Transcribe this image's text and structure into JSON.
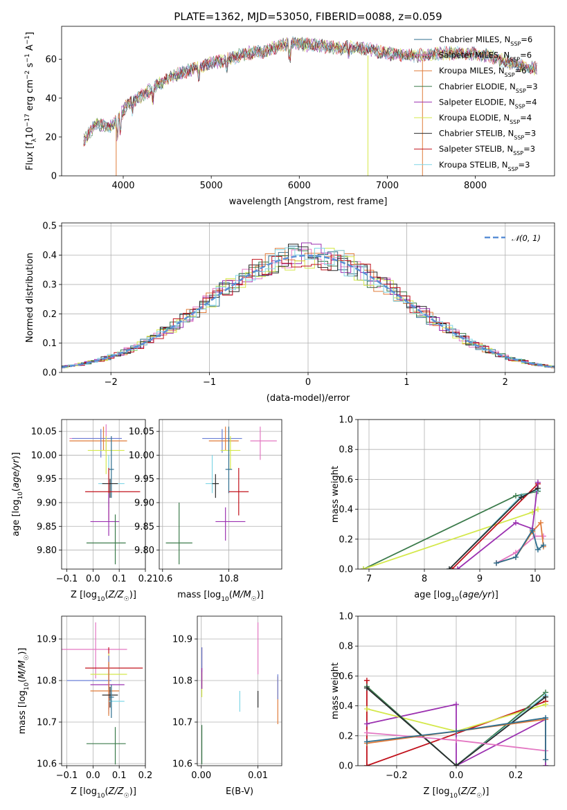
{
  "figure": {
    "title": "PLATE=1362, MJD=53050, FIBERID=0088, z=0.059"
  },
  "chart_data": [
    {
      "id": "spectrum",
      "type": "line",
      "xlabel": "wavelength [Angstrom, rest frame]",
      "ylabel": "Flux [f_λ 10^-17 erg cm^-2 s^-1 A^-1]",
      "xlim": [
        3300,
        8900
      ],
      "ylim": [
        0,
        77
      ],
      "xticks": [
        4000,
        5000,
        6000,
        7000,
        8000
      ],
      "yticks": [
        0,
        20,
        40,
        60
      ],
      "legend_position": "top-right",
      "series": [
        {
          "name": "Chabrier MILES, N_SSP=6",
          "color": "#2e6e8e"
        },
        {
          "name": "Salpeter MILES, N_SSP=6",
          "color": "#e377c2"
        },
        {
          "name": "Kroupa MILES, N_SSP=6",
          "color": "#e07b39"
        },
        {
          "name": "Chabrier ELODIE, N_SSP=3",
          "color": "#3a7a4a"
        },
        {
          "name": "Salpeter ELODIE, N_SSP=4",
          "color": "#9b30b0"
        },
        {
          "name": "Kroupa ELODIE, N_SSP=4",
          "color": "#d4e84a"
        },
        {
          "name": "Chabrier STELIB, N_SSP=3",
          "color": "#2a2a2a"
        },
        {
          "name": "Salpeter STELIB, N_SSP=3",
          "color": "#c0101a"
        },
        {
          "name": "Kroupa STELIB, N_SSP=3",
          "color": "#7fd6e6"
        }
      ],
      "continuum": {
        "x": [
          3550,
          3700,
          3850,
          3950,
          4050,
          4200,
          4400,
          4600,
          4800,
          5000,
          5200,
          5400,
          5600,
          5800,
          5900,
          6000,
          6200,
          6400,
          6600,
          6800,
          7000,
          7200,
          7400,
          7600,
          7800,
          8000,
          8200,
          8400,
          8700
        ],
        "y": [
          18,
          27,
          25,
          30,
          37,
          41,
          47,
          52,
          55,
          58,
          60,
          63,
          64,
          67,
          68,
          68,
          67,
          66,
          66,
          65,
          63,
          62,
          62,
          63,
          63,
          63,
          61,
          58,
          55
        ]
      }
    },
    {
      "id": "residuals",
      "type": "line",
      "xlabel": "(data-model)/error",
      "ylabel": "Normed distribution",
      "xlim": [
        -2.5,
        2.5
      ],
      "ylim": [
        0,
        0.51
      ],
      "xticks": [
        -2,
        -1,
        0,
        1,
        2
      ],
      "yticks": [
        0.0,
        0.1,
        0.2,
        0.3,
        0.4,
        0.5
      ],
      "legend_position": "top-right",
      "reference_curve": {
        "name": "𝒩(0, 1)",
        "mean": 0,
        "sigma": 1,
        "color": "#5b8fd6"
      },
      "histogram_bin_width": 0.1
    },
    {
      "id": "age-vs-Z",
      "type": "scatter",
      "xlabel": "Z [log10(Z/Z☉)]",
      "ylabel": "age [log10(age/yr)]",
      "xlim": [
        -0.12,
        0.2
      ],
      "ylim": [
        9.76,
        10.075
      ],
      "xticks": [
        -0.1,
        0.0,
        0.1,
        0.2
      ],
      "yticks": [
        9.8,
        9.85,
        9.9,
        9.95,
        10.0,
        10.05
      ],
      "points": [
        {
          "x": 0.05,
          "y": 10.035,
          "ex": [
            0.14,
            0.06
          ],
          "ey": [
            0.03,
            0.03
          ],
          "color": "#e377c2"
        },
        {
          "x": 0.04,
          "y": 10.03,
          "ex": [
            0.13,
            0.09
          ],
          "ey": [
            0.02,
            0.03
          ],
          "color": "#e07b39"
        },
        {
          "x": 0.03,
          "y": 10.035,
          "ex": [
            0.11,
            0.08
          ],
          "ey": [
            0.04,
            0.02
          ],
          "color": "#6a7fd6"
        },
        {
          "x": 0.05,
          "y": 10.01,
          "ex": [
            0.07,
            0.07
          ],
          "ey": [
            0.05,
            0.03
          ],
          "color": "#d4e84a"
        },
        {
          "x": 0.07,
          "y": 9.97,
          "ex": [
            0.01,
            0.01
          ],
          "ey": [
            0.06,
            0.07
          ],
          "color": "#2e6e8e"
        },
        {
          "x": 0.06,
          "y": 9.94,
          "ex": [
            0.04,
            0.06
          ],
          "ey": [
            0.05,
            0.06
          ],
          "color": "#7fd6e6"
        },
        {
          "x": 0.065,
          "y": 9.94,
          "ex": [
            0.03,
            0.03
          ],
          "ey": [
            0.03,
            0.01
          ],
          "color": "#2a2a2a"
        },
        {
          "x": 0.06,
          "y": 9.923,
          "ex": [
            0.09,
            0.12
          ],
          "ey": [
            0.06,
            0.05
          ],
          "color": "#c0101a"
        },
        {
          "x": 0.06,
          "y": 9.86,
          "ex": [
            0.07,
            0.04
          ],
          "ey": [
            0.03,
            0.06
          ],
          "color": "#9b30b0"
        },
        {
          "x": 0.085,
          "y": 9.815,
          "ex": [
            0.11,
            0.04
          ],
          "ey": [
            0.045,
            0.06
          ],
          "color": "#3a7a4a"
        }
      ]
    },
    {
      "id": "age-vs-mass",
      "type": "scatter",
      "xlabel": "mass [log10(M/M☉)]",
      "ylabel": "",
      "xlim": [
        10.59,
        10.96
      ],
      "ylim": [
        9.76,
        10.075
      ],
      "xticks": [
        10.6,
        10.8
      ],
      "yticks": [
        9.8,
        9.85,
        9.9,
        9.95,
        10.0,
        10.05
      ],
      "points": [
        {
          "x": 10.895,
          "y": 10.03,
          "ex": [
            0.03,
            0.05
          ],
          "ey": [
            0.04,
            0.03
          ],
          "color": "#e377c2"
        },
        {
          "x": 10.78,
          "y": 10.035,
          "ex": [
            0.06,
            0.06
          ],
          "ey": [
            0.03,
            0.02
          ],
          "color": "#6a7fd6"
        },
        {
          "x": 10.79,
          "y": 10.03,
          "ex": [
            0.05,
            0.04
          ],
          "ey": [
            0.02,
            0.03
          ],
          "color": "#e07b39"
        },
        {
          "x": 10.805,
          "y": 10.01,
          "ex": [
            0.03,
            0.03
          ],
          "ey": [
            0.04,
            0.03
          ],
          "color": "#d4e84a"
        },
        {
          "x": 10.8,
          "y": 9.97,
          "ex": [
            0.01,
            0.01
          ],
          "ey": [
            0.05,
            0.09
          ],
          "color": "#2e6e8e"
        },
        {
          "x": 10.75,
          "y": 9.94,
          "ex": [
            0.02,
            0.02
          ],
          "ey": [
            0.02,
            0.06
          ],
          "color": "#7fd6e6"
        },
        {
          "x": 10.76,
          "y": 9.94,
          "ex": [
            0.01,
            0.01
          ],
          "ey": [
            0.03,
            0.02
          ],
          "color": "#2a2a2a"
        },
        {
          "x": 10.83,
          "y": 9.923,
          "ex": [
            0.03,
            0.03
          ],
          "ey": [
            0.05,
            0.05
          ],
          "color": "#c0101a"
        },
        {
          "x": 10.79,
          "y": 9.86,
          "ex": [
            0.03,
            0.06
          ],
          "ey": [
            0.04,
            0.03
          ],
          "color": "#9b30b0"
        },
        {
          "x": 10.65,
          "y": 9.815,
          "ex": [
            0.04,
            0.04
          ],
          "ey": [
            0.045,
            0.085
          ],
          "color": "#3a7a4a"
        }
      ]
    },
    {
      "id": "weight-vs-age",
      "type": "line",
      "xlabel": "age [log10(age/yr)]",
      "ylabel": "mass weight",
      "xlim": [
        6.8,
        10.35
      ],
      "ylim": [
        0,
        1.0
      ],
      "xticks": [
        7,
        8,
        9,
        10
      ],
      "yticks": [
        0.0,
        0.2,
        0.4,
        0.6,
        0.8,
        1.0
      ],
      "series": [
        {
          "color": "#3a7a4a",
          "x": [
            6.9,
            9.65,
            10.05
          ],
          "y": [
            0.0,
            0.49,
            0.52
          ]
        },
        {
          "color": "#d4e84a",
          "x": [
            6.9,
            9.95,
            10.05
          ],
          "y": [
            0.0,
            0.38,
            0.4
          ]
        },
        {
          "color": "#c0101a",
          "x": [
            8.5,
            10.05
          ],
          "y": [
            0.0,
            0.57
          ]
        },
        {
          "color": "#9b30b0",
          "x": [
            8.6,
            9.65,
            9.95,
            10.05
          ],
          "y": [
            0.0,
            0.31,
            0.27,
            0.58
          ]
        },
        {
          "color": "#7fd6e6",
          "x": [
            8.45,
            9.75,
            10.05
          ],
          "y": [
            0.0,
            0.49,
            0.53
          ]
        },
        {
          "color": "#2a2a2a",
          "x": [
            8.45,
            9.75,
            10.05
          ],
          "y": [
            0.0,
            0.48,
            0.54
          ]
        },
        {
          "color": "#e377c2",
          "x": [
            9.3,
            9.65,
            10.0,
            10.15
          ],
          "y": [
            0.04,
            0.11,
            0.22,
            0.22
          ]
        },
        {
          "color": "#e07b39",
          "x": [
            9.3,
            9.65,
            9.95,
            10.1,
            10.15
          ],
          "y": [
            0.04,
            0.08,
            0.25,
            0.31,
            0.15
          ]
        },
        {
          "color": "#2e6e8e",
          "x": [
            9.3,
            9.65,
            9.95,
            10.05,
            10.15
          ],
          "y": [
            0.04,
            0.08,
            0.26,
            0.13,
            0.16
          ]
        }
      ]
    },
    {
      "id": "mass-vs-Z",
      "type": "scatter",
      "xlabel": "Z [log10(Z/Z☉)]",
      "ylabel": "mass [log10(M/M☉)]",
      "xlim": [
        -0.12,
        0.2
      ],
      "ylim": [
        10.595,
        10.955
      ],
      "xticks": [
        -0.1,
        0.0,
        0.1,
        0.2
      ],
      "yticks": [
        10.6,
        10.7,
        10.8,
        10.9
      ],
      "points": [
        {
          "x": 0.01,
          "y": 10.875,
          "ex": [
            0.13,
            0.12
          ],
          "ey": [
            0.07,
            0.065
          ],
          "color": "#e377c2"
        },
        {
          "x": 0.06,
          "y": 10.83,
          "ex": [
            0.09,
            0.13
          ],
          "ey": [
            0.05,
            0.05
          ],
          "color": "#c0101a"
        },
        {
          "x": 0.06,
          "y": 10.815,
          "ex": [
            0.07,
            0.07
          ],
          "ey": [
            0.05,
            0.05
          ],
          "color": "#d4e84a"
        },
        {
          "x": 0.06,
          "y": 10.8,
          "ex": [
            0.16,
            0.01
          ],
          "ey": [
            0.08,
            0.06
          ],
          "color": "#6a7fd6"
        },
        {
          "x": 0.06,
          "y": 10.79,
          "ex": [
            0.07,
            0.06
          ],
          "ey": [
            0.06,
            0.05
          ],
          "color": "#9b30b0"
        },
        {
          "x": 0.06,
          "y": 10.775,
          "ex": [
            0.07,
            0.04
          ],
          "ey": [
            0.06,
            0.07
          ],
          "color": "#e07b39"
        },
        {
          "x": 0.065,
          "y": 10.765,
          "ex": [
            0.03,
            0.03
          ],
          "ey": [
            0.03,
            0.02
          ],
          "color": "#2a2a2a"
        },
        {
          "x": 0.07,
          "y": 10.75,
          "ex": [
            0.01,
            0.05
          ],
          "ey": [
            0.02,
            0.02
          ],
          "color": "#7fd6e6"
        },
        {
          "x": 0.07,
          "y": 10.76,
          "ex": [
            0.01,
            0.01
          ],
          "ey": [
            0.05,
            0.03
          ],
          "color": "#2e6e8e"
        },
        {
          "x": 0.085,
          "y": 10.648,
          "ex": [
            0.11,
            0.04
          ],
          "ey": [
            0.05,
            0.04
          ],
          "color": "#3a7a4a"
        }
      ]
    },
    {
      "id": "mass-vs-EBV",
      "type": "scatter",
      "xlabel": "E(B-V)",
      "ylabel": "",
      "xlim": [
        -0.0007,
        0.0142
      ],
      "ylim": [
        10.595,
        10.955
      ],
      "xticks": [
        0.0,
        0.01
      ],
      "yticks": [
        10.6,
        10.7,
        10.8,
        10.9
      ],
      "points": [
        {
          "x": 0.01,
          "y": 10.875,
          "ey": [
            0.06,
            0.065
          ],
          "color": "#e377c2"
        },
        {
          "x": 0.0001,
          "y": 10.83,
          "ey": [
            0.05,
            0.05
          ],
          "color": "#c0101a"
        },
        {
          "x": 0.0001,
          "y": 10.79,
          "ey": [
            0.03,
            0.03
          ],
          "color": "#d4e84a"
        },
        {
          "x": 0.0001,
          "y": 10.85,
          "ey": [
            0.03,
            0.03
          ],
          "color": "#6a7fd6"
        },
        {
          "x": 0.0001,
          "y": 10.8,
          "ey": [
            0.02,
            0.03
          ],
          "color": "#9b30b0"
        },
        {
          "x": 0.0135,
          "y": 10.745,
          "ey": [
            0.05,
            0.065
          ],
          "color": "#e07b39"
        },
        {
          "x": 0.0135,
          "y": 10.775,
          "ey": [
            0.02,
            0.04
          ],
          "color": "#6a7fd6"
        },
        {
          "x": 0.01,
          "y": 10.74,
          "ey": [
            0.005,
            0.035
          ],
          "color": "#2a2a2a"
        },
        {
          "x": 0.0068,
          "y": 10.75,
          "ey": [
            0.025,
            0.025
          ],
          "color": "#7fd6e6"
        },
        {
          "x": 0.0001,
          "y": 10.648,
          "ey": [
            0.05,
            0.045
          ],
          "color": "#3a7a4a"
        }
      ]
    },
    {
      "id": "weight-vs-Z",
      "type": "line",
      "xlabel": "Z [log10(Z/Z☉)]",
      "ylabel": "mass weight",
      "xlim": [
        -0.33,
        0.33
      ],
      "ylim": [
        0,
        1.0
      ],
      "xticks": [
        -0.2,
        0.0,
        0.2
      ],
      "yticks": [
        0.0,
        0.2,
        0.4,
        0.6,
        0.8,
        1.0
      ],
      "series": [
        {
          "color": "#c0101a",
          "x": [
            -0.3,
            -0.3,
            0.3
          ],
          "y": [
            0.57,
            0.0,
            0.43
          ]
        },
        {
          "color": "#9b30b0",
          "x": [
            -0.3,
            0.0,
            0.0,
            0.3,
            0.3
          ],
          "y": [
            0.28,
            0.41,
            0.0,
            0.31,
            0.0
          ]
        },
        {
          "color": "#d4e84a",
          "x": [
            -0.3,
            0.0,
            0.3
          ],
          "y": [
            0.38,
            0.23,
            0.41
          ]
        },
        {
          "color": "#3a7a4a",
          "x": [
            -0.3,
            0.0,
            0.3
          ],
          "y": [
            0.53,
            0.0,
            0.49
          ]
        },
        {
          "color": "#7fd6e6",
          "x": [
            -0.3,
            0.0,
            0.3
          ],
          "y": [
            0.52,
            0.0,
            0.47
          ]
        },
        {
          "color": "#2a2a2a",
          "x": [
            -0.3,
            0.0,
            0.3
          ],
          "y": [
            0.52,
            0.0,
            0.46
          ]
        },
        {
          "color": "#e377c2",
          "x": [
            -0.3,
            0.0,
            0.3
          ],
          "y": [
            0.22,
            0.17,
            0.1
          ]
        },
        {
          "color": "#e07b39",
          "x": [
            -0.3,
            0.0,
            0.3,
            0.3
          ],
          "y": [
            0.15,
            0.23,
            0.31,
            0.04
          ]
        },
        {
          "color": "#2e6e8e",
          "x": [
            -0.3,
            0.0,
            0.3,
            0.3
          ],
          "y": [
            0.16,
            0.23,
            0.32,
            0.04
          ]
        }
      ]
    }
  ]
}
